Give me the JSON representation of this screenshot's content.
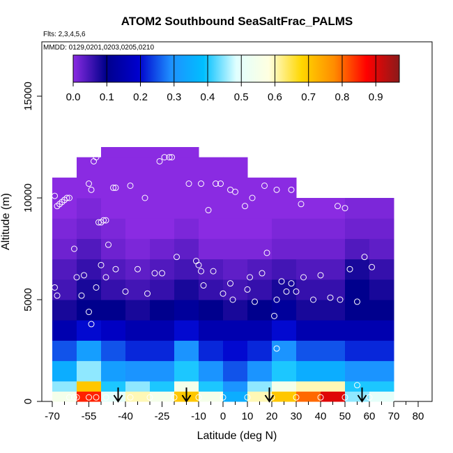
{
  "chart_data": {
    "type": "heatmap",
    "title": "ATOM2 Southbound SeaSaltFrac_PALMS",
    "subtitle_flights": "Flts: 2,3,4,5,6",
    "subtitle_dates": "MMDD: 0129,0201,0203,0205,0210",
    "xlabel": "Latitude (deg N)",
    "ylabel": "Altitude (m)",
    "xlim": [
      -70,
      80
    ],
    "ylim": [
      0,
      17500
    ],
    "x_ticks": [
      -70,
      -55,
      -40,
      -25,
      -10,
      0,
      10,
      20,
      30,
      40,
      50,
      60,
      70,
      80
    ],
    "y_ticks": [
      0,
      5000,
      10000,
      15000
    ],
    "grid": false,
    "colorbar": {
      "placement": "top-inside",
      "range": [
        0,
        0.97
      ],
      "tick_labels": [
        "0.0",
        "0.1",
        "0.2",
        "0.3",
        "0.4",
        "0.5",
        "0.6",
        "0.7",
        "0.8",
        "0.9"
      ],
      "tick_values": [
        0,
        0.1,
        0.2,
        0.3,
        0.4,
        0.5,
        0.6,
        0.7,
        0.8,
        0.9
      ],
      "colors": [
        "#8a2be2",
        "#00008b",
        "#0000cd",
        "#1e90ff",
        "#00bfff",
        "#e0ffff",
        "#ffffe0",
        "#ffd700",
        "#ff8c00",
        "#ff0000",
        "#8b1a1a"
      ]
    },
    "cells": {
      "x_bins": [
        [
          -70,
          -60
        ],
        [
          -60,
          -50
        ],
        [
          -50,
          -40
        ],
        [
          -40,
          -30
        ],
        [
          -30,
          -20
        ],
        [
          -20,
          -10
        ],
        [
          -10,
          0
        ],
        [
          0,
          10
        ],
        [
          10,
          20
        ],
        [
          20,
          30
        ],
        [
          30,
          40
        ],
        [
          40,
          50
        ],
        [
          50,
          60
        ],
        [
          60,
          70
        ]
      ],
      "y_bins": [
        [
          0,
          500
        ],
        [
          500,
          1000
        ],
        [
          1000,
          2000
        ],
        [
          2000,
          3000
        ],
        [
          3000,
          4000
        ],
        [
          4000,
          5000
        ],
        [
          5000,
          6000
        ],
        [
          6000,
          7000
        ],
        [
          7000,
          8000
        ],
        [
          8000,
          9000
        ],
        [
          9000,
          10000
        ],
        [
          10000,
          11000
        ],
        [
          11000,
          12000
        ],
        [
          12000,
          12500
        ]
      ],
      "values": [
        [
          0.55,
          0.85,
          0.5,
          0.6,
          0.55,
          0.7,
          0.55,
          0.35,
          0.6,
          0.7,
          0.8,
          0.9,
          0.45,
          0.5
        ],
        [
          0.45,
          0.7,
          0.4,
          0.45,
          0.4,
          0.55,
          0.4,
          0.3,
          0.45,
          0.55,
          0.6,
          0.6,
          0.4,
          0.4
        ],
        [
          0.35,
          0.45,
          0.32,
          0.3,
          0.3,
          0.4,
          0.3,
          0.25,
          0.3,
          0.4,
          0.35,
          0.35,
          0.3,
          0.3
        ],
        [
          0.25,
          0.32,
          0.25,
          0.22,
          0.22,
          0.3,
          0.22,
          0.2,
          0.22,
          0.3,
          0.25,
          0.25,
          0.22,
          0.22
        ],
        [
          0.15,
          0.2,
          0.18,
          0.15,
          0.15,
          0.2,
          0.15,
          0.15,
          0.15,
          0.2,
          0.15,
          0.15,
          0.15,
          0.15
        ],
        [
          0.08,
          0.1,
          0.1,
          0.08,
          0.1,
          0.12,
          0.1,
          0.08,
          0.1,
          0.12,
          0.08,
          0.08,
          0.1,
          0.1
        ],
        [
          0.05,
          0.08,
          0.06,
          0.05,
          0.06,
          0.08,
          0.06,
          0.05,
          0.06,
          0.08,
          0.06,
          0.06,
          0.1,
          0.08
        ],
        [
          0.04,
          0.06,
          0.04,
          0.03,
          0.04,
          0.05,
          0.04,
          0.03,
          0.04,
          0.05,
          0.04,
          0.04,
          0.08,
          0.06
        ],
        [
          0.02,
          0.04,
          0.02,
          0.01,
          0.02,
          0.03,
          0.01,
          0.01,
          0.01,
          0.02,
          0.02,
          0.02,
          0.04,
          0.03
        ],
        [
          0.01,
          0.02,
          0.01,
          0.0,
          0.0,
          0.01,
          0.0,
          0.0,
          0.0,
          0.01,
          0.01,
          0.01,
          0.02,
          0.02
        ],
        [
          0.0,
          0.01,
          0.0,
          0.0,
          0.0,
          0.0,
          0.0,
          0.0,
          0.0,
          0.0,
          0.0,
          0.0,
          0.01,
          0.01
        ],
        [
          0.0,
          0.0,
          0.0,
          0.0,
          0.0,
          0.0,
          0.0,
          0.0,
          0.0,
          0.0,
          null,
          null,
          null,
          null
        ],
        [
          null,
          0.0,
          0.0,
          0.0,
          0.0,
          0.0,
          0.0,
          0.0,
          null,
          null,
          null,
          null,
          null,
          null
        ],
        [
          null,
          null,
          0.0,
          0.0,
          0.0,
          0.0,
          null,
          null,
          null,
          null,
          null,
          null,
          null,
          null
        ]
      ]
    },
    "sample_points": [
      [
        -69,
        10100
      ],
      [
        -68,
        9600
      ],
      [
        -67,
        9700
      ],
      [
        -66,
        9800
      ],
      [
        -65,
        9900
      ],
      [
        -64,
        10000
      ],
      [
        -63,
        10000
      ],
      [
        -56,
        12200
      ],
      [
        -55,
        10700
      ],
      [
        -54,
        10400
      ],
      [
        -53,
        11800
      ],
      [
        -52,
        12000
      ],
      [
        -51,
        8800
      ],
      [
        -50,
        8800
      ],
      [
        -49,
        8900
      ],
      [
        -48,
        8900
      ],
      [
        -47,
        7700
      ],
      [
        -45,
        10500
      ],
      [
        -44,
        10500
      ],
      [
        -38,
        10600
      ],
      [
        -32,
        10000
      ],
      [
        -26,
        11800
      ],
      [
        -24,
        12000
      ],
      [
        -22,
        12000
      ],
      [
        -21,
        12000
      ],
      [
        -14,
        10700
      ],
      [
        -9,
        10700
      ],
      [
        -6,
        9400
      ],
      [
        -3,
        10700
      ],
      [
        -1,
        10700
      ],
      [
        3,
        10400
      ],
      [
        5,
        10300
      ],
      [
        9,
        9600
      ],
      [
        12,
        10000
      ],
      [
        17,
        10600
      ],
      [
        22,
        10400
      ],
      [
        28,
        10400
      ],
      [
        32,
        9700
      ],
      [
        37,
        10600
      ],
      [
        43,
        10200
      ],
      [
        47,
        9600
      ],
      [
        50,
        9500
      ],
      [
        56,
        11300
      ],
      [
        58,
        11300
      ],
      [
        -69,
        5600
      ],
      [
        -68,
        5200
      ],
      [
        -61,
        7500
      ],
      [
        -60,
        6100
      ],
      [
        -58,
        5200
      ],
      [
        -57,
        6200
      ],
      [
        -55,
        4400
      ],
      [
        -54,
        3800
      ],
      [
        -52,
        5600
      ],
      [
        -50,
        6700
      ],
      [
        -48,
        6100
      ],
      [
        -44,
        6500
      ],
      [
        -40,
        5400
      ],
      [
        -35,
        6500
      ],
      [
        -31,
        5300
      ],
      [
        -28,
        6300
      ],
      [
        -25,
        6300
      ],
      [
        -19,
        7100
      ],
      [
        -11,
        6900
      ],
      [
        -10,
        6700
      ],
      [
        -9,
        6400
      ],
      [
        -8,
        5700
      ],
      [
        -4,
        6400
      ],
      [
        0,
        5300
      ],
      [
        3,
        5800
      ],
      [
        4,
        5000
      ],
      [
        10,
        5500
      ],
      [
        11,
        6100
      ],
      [
        13,
        4900
      ],
      [
        16,
        6300
      ],
      [
        18,
        7300
      ],
      [
        21,
        4200
      ],
      [
        22,
        5000
      ],
      [
        24,
        5900
      ],
      [
        26,
        5400
      ],
      [
        28,
        5800
      ],
      [
        30,
        5400
      ],
      [
        33,
        6100
      ],
      [
        37,
        5000
      ],
      [
        40,
        6200
      ],
      [
        44,
        5100
      ],
      [
        48,
        5000
      ],
      [
        52,
        6500
      ],
      [
        55,
        4900
      ],
      [
        58,
        7100
      ],
      [
        61,
        6600
      ],
      [
        22,
        2600
      ],
      [
        55,
        800
      ],
      [
        -63,
        200
      ],
      [
        -61,
        200
      ],
      [
        -60,
        200
      ],
      [
        -55,
        200
      ],
      [
        -52,
        200
      ],
      [
        -48,
        200
      ],
      [
        -38,
        200
      ],
      [
        -30,
        200
      ],
      [
        -20,
        200
      ],
      [
        -10,
        200
      ],
      [
        0,
        200
      ],
      [
        10,
        200
      ],
      [
        20,
        200
      ],
      [
        30,
        200
      ],
      [
        40,
        200
      ],
      [
        50,
        200
      ],
      [
        60,
        200
      ]
    ],
    "arrows_at_latitude": [
      -43,
      -15,
      19,
      57
    ]
  }
}
